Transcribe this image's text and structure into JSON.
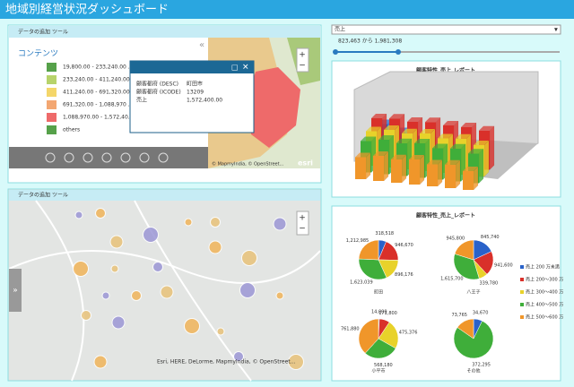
{
  "header": {
    "title": "地域別経営状況ダッシュボード"
  },
  "map_panel": {
    "toolbar": [
      "データの追加",
      "ツール"
    ],
    "contents_title": "コンテンツ",
    "legend": [
      "19,800.00 - 233,240.00 ...",
      "233,240.00 - 411,240.00 ...",
      "411,240.00 - 691,320.00 ...",
      "691,320.00 - 1,088,970 ...",
      "1,088,970.00 - 1,572,40...",
      "others"
    ],
    "attribution": "© MapmyIndia, © OpenStreet...",
    "logo": "esri"
  },
  "popup": {
    "rows": [
      [
        "顧客都府 (DESC)",
        "町田市"
      ],
      [
        "顧客都府 (ICODE)",
        "13209"
      ],
      [
        "売上",
        "1,572,400.00"
      ]
    ]
  },
  "map_panel2": {
    "toolbar": [
      "データの追加",
      "ツール"
    ],
    "attribution": "Esri, HERE, DeLorme, MapmyIndia, © OpenStreet..."
  },
  "filter": {
    "field": "売上",
    "range": "823,463 から 1,981,308"
  },
  "chart_data": [
    {
      "type": "bar3d",
      "title": "顧客特性_売上_レポート",
      "ylim": [
        0,
        2000000
      ],
      "series": [
        {
          "color": "#2a62c9",
          "values": [
            900000,
            700000,
            500000,
            null,
            null,
            null,
            null
          ]
        },
        {
          "color": "#d9302a",
          "values": [
            1300000,
            1350000,
            1300000,
            1350000,
            1300000,
            1300000,
            1250000
          ]
        },
        {
          "color": "#e8d22a",
          "values": [
            1100000,
            1200000,
            1150000,
            1200000,
            1100000,
            1150000,
            1000000
          ]
        },
        {
          "color": "#3fae3a",
          "values": [
            1000000,
            1100000,
            1050000,
            1100000,
            1000000,
            1050000,
            950000
          ]
        },
        {
          "color": "#f0962a",
          "values": [
            700000,
            800000,
            750000,
            800000,
            700000,
            750000,
            600000
          ]
        }
      ]
    },
    {
      "type": "pie",
      "title": "顧客特性_売上_レポート",
      "series": [
        {
          "name": "売上 200 万未満",
          "color": "#2a62c9"
        },
        {
          "name": "売上 200～300 万",
          "color": "#d9302a"
        },
        {
          "name": "売上 300～400 万",
          "color": "#e8d22a"
        },
        {
          "name": "売上 400～500 万",
          "color": "#3fae3a"
        },
        {
          "name": "売上 500～600 万",
          "color": "#f0962a"
        }
      ],
      "pies": [
        {
          "label": "町田",
          "values": [
            318518,
            946670,
            896176,
            1623039,
            1212985
          ],
          "value_labels": [
            "318,518",
            "946,670",
            "896,176",
            "1,623,039",
            "1,212,985"
          ]
        },
        {
          "label": "八王子",
          "values": [
            845740,
            941600,
            339780,
            1615700,
            945800
          ],
          "value_labels": [
            "845,740",
            "941,600",
            "339,780",
            "1,615,700",
            "945,800"
          ]
        },
        {
          "label": "小平市",
          "values": [
            14000,
            171800,
            475376,
            568180,
            761880
          ],
          "value_labels": [
            "14,000",
            "171,800",
            "475,376",
            "568,180",
            "761,880"
          ]
        },
        {
          "label": "その他",
          "values": [
            34670,
            null,
            null,
            372295,
            73765
          ],
          "value_labels": [
            "34,670",
            null,
            null,
            "372,295",
            "73,765"
          ]
        }
      ]
    }
  ]
}
